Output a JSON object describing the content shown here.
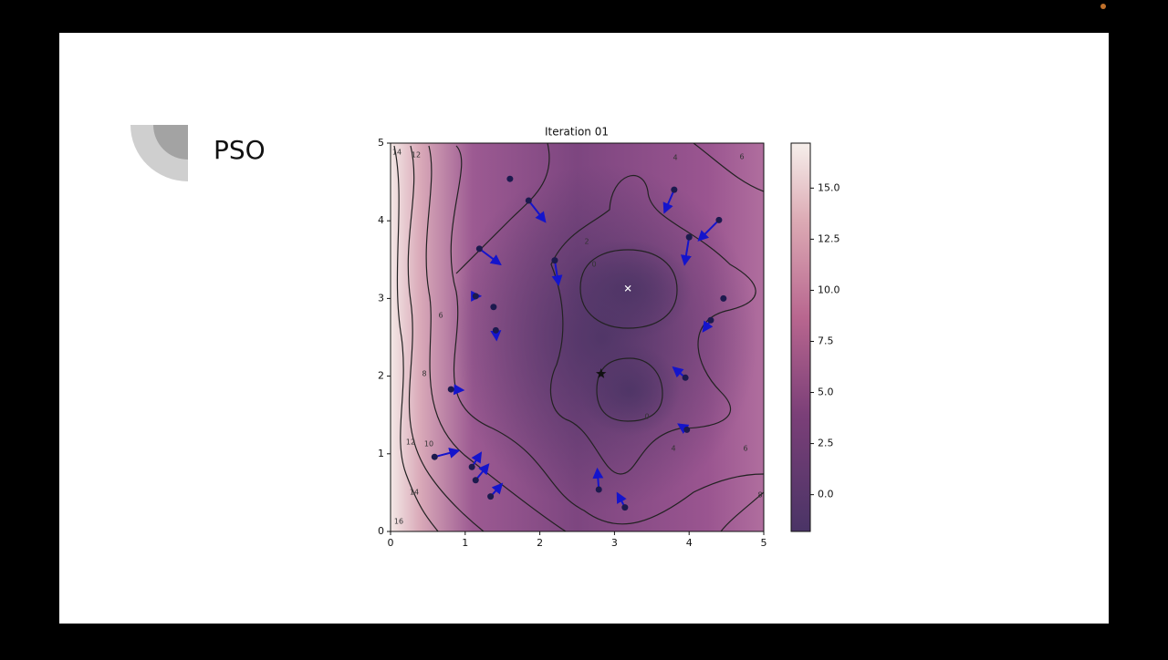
{
  "slide": {
    "title": "PSO"
  },
  "chart_data": {
    "type": "scatter",
    "title": "Iteration 01",
    "x": [
      1.6,
      1.85,
      1.19,
      2.2,
      1.14,
      1.38,
      1.41,
      0.81,
      0.59,
      1.09,
      1.14,
      1.34,
      2.79,
      3.14,
      3.95,
      3.97,
      4.29,
      4.46,
      4.0,
      4.4,
      3.8
    ],
    "y": [
      4.54,
      4.26,
      3.64,
      3.49,
      3.03,
      2.89,
      2.59,
      1.83,
      0.96,
      0.83,
      0.66,
      0.45,
      0.54,
      0.31,
      1.98,
      1.31,
      2.72,
      3.0,
      3.79,
      4.01,
      4.4
    ],
    "u": [
      null,
      0.22,
      0.28,
      0.05,
      0.06,
      null,
      0.01,
      0.16,
      0.32,
      0.12,
      0.17,
      0.15,
      -0.02,
      -0.1,
      -0.16,
      -0.11,
      -0.1,
      null,
      -0.06,
      -0.27,
      -0.13
    ],
    "v": [
      null,
      -0.27,
      -0.2,
      -0.31,
      0.0,
      null,
      -0.12,
      -0.01,
      0.08,
      0.18,
      0.2,
      0.16,
      0.26,
      0.18,
      0.13,
      0.07,
      -0.14,
      null,
      -0.35,
      -0.26,
      -0.29
    ],
    "best": {
      "x": 2.82,
      "y": 2.03
    },
    "optimum": {
      "x": 3.18,
      "y": 3.13
    },
    "color": "#1c1a4e",
    "arrow_color": "#1414cc",
    "xlim": [
      0,
      5
    ],
    "ylim": [
      0,
      5
    ],
    "xticks": [
      0,
      1,
      2,
      3,
      4,
      5
    ],
    "yticks": [
      0,
      1,
      2,
      3,
      4,
      5
    ],
    "colorbar": {
      "clim": [
        -1.8,
        17.2
      ],
      "ticks": [
        {
          "value": 0,
          "label": "0.0"
        },
        {
          "value": 2.5,
          "label": "2.5"
        },
        {
          "value": 5,
          "label": "5.0"
        },
        {
          "value": 7.5,
          "label": "7.5"
        },
        {
          "value": 10,
          "label": "10.0"
        },
        {
          "value": 12.5,
          "label": "12.5"
        },
        {
          "value": 15,
          "label": "15.0"
        }
      ]
    },
    "contour_labels": [
      14,
      12,
      6,
      4,
      2,
      0,
      6,
      8,
      0,
      10,
      12,
      4,
      6,
      14,
      8,
      16
    ]
  }
}
